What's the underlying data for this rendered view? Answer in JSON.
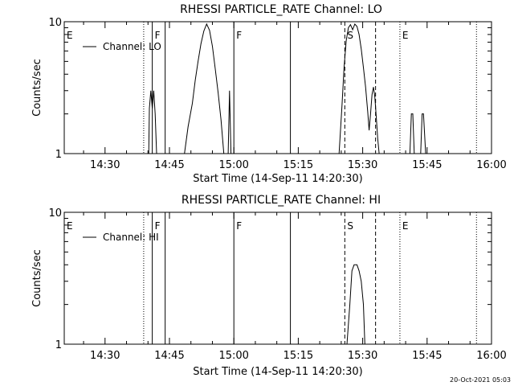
{
  "timestamp": "20-Oct-2021 05:03",
  "chart_data": [
    {
      "type": "line",
      "title": "RHESSI PARTICLE_RATE Channel: LO",
      "xlabel": "Start Time (14-Sep-11 14:20:30)",
      "ylabel": "Counts/sec",
      "y_scale": "log",
      "ylim": [
        1,
        10
      ],
      "xlim": [
        "14:20:30",
        "16:00:00"
      ],
      "x_ticks": [
        "14:30",
        "14:45",
        "15:00",
        "15:15",
        "15:30",
        "15:45",
        "16:00"
      ],
      "y_ticks": [
        "1",
        "10"
      ],
      "legend": {
        "label": "Channel: LO",
        "placement": "top-left"
      },
      "series": [
        {
          "name": "Channel: LO",
          "points": [
            [
              "14:40:10",
              1
            ],
            [
              "14:40:20",
              2.2
            ],
            [
              "14:40:40",
              3.0
            ],
            [
              "14:41:00",
              2.2
            ],
            [
              "14:41:20",
              3.0
            ],
            [
              "14:41:40",
              2.0
            ],
            [
              "14:42:00",
              1
            ],
            [
              "14:48:30",
              1
            ],
            [
              "14:49:20",
              1.6
            ],
            [
              "14:50:20",
              2.4
            ],
            [
              "14:51:00",
              3.6
            ],
            [
              "14:51:40",
              5.0
            ],
            [
              "14:52:20",
              6.8
            ],
            [
              "14:53:00",
              8.5
            ],
            [
              "14:53:40",
              9.6
            ],
            [
              "14:54:20",
              8.6
            ],
            [
              "14:55:00",
              6.5
            ],
            [
              "14:55:40",
              4.4
            ],
            [
              "14:56:20",
              2.9
            ],
            [
              "14:57:00",
              1.8
            ],
            [
              "14:57:40",
              1
            ],
            [
              "14:58:40",
              1
            ],
            [
              "14:59:00",
              3.0
            ],
            [
              "14:59:20",
              1
            ],
            [
              "15:24:30",
              1
            ],
            [
              "15:25:10",
              2.3
            ],
            [
              "15:25:40",
              4.5
            ],
            [
              "15:26:10",
              7.2
            ],
            [
              "15:26:40",
              9.0
            ],
            [
              "15:27:10",
              9.5
            ],
            [
              "15:27:40",
              8.7
            ],
            [
              "15:28:10",
              9.6
            ],
            [
              "15:28:40",
              9.2
            ],
            [
              "15:29:10",
              8.0
            ],
            [
              "15:29:40",
              6.2
            ],
            [
              "15:30:10",
              4.5
            ],
            [
              "15:30:40",
              3.2
            ],
            [
              "15:31:10",
              2.1
            ],
            [
              "15:31:30",
              1.5
            ],
            [
              "15:31:50",
              2.0
            ],
            [
              "15:32:10",
              2.8
            ],
            [
              "15:32:30",
              3.2
            ],
            [
              "15:32:50",
              2.7
            ],
            [
              "15:33:10",
              1.9
            ],
            [
              "15:33:30",
              1.3
            ],
            [
              "15:33:50",
              1
            ],
            [
              "15:41:00",
              1
            ],
            [
              "15:41:20",
              2.0
            ],
            [
              "15:41:40",
              2.0
            ],
            [
              "15:42:00",
              1
            ],
            [
              "15:43:30",
              1
            ],
            [
              "15:43:50",
              2.0
            ],
            [
              "15:44:10",
              2.0
            ],
            [
              "15:44:40",
              1
            ]
          ]
        }
      ],
      "event_markers": [
        {
          "label": "E",
          "time": "14:20:30",
          "style": "dotted"
        },
        {
          "label": "",
          "time": "14:39:00",
          "style": "dotted"
        },
        {
          "label": "F",
          "time": "14:41:00",
          "style": "solid"
        },
        {
          "label": "",
          "time": "14:44:00",
          "style": "solid"
        },
        {
          "label": "F",
          "time": "15:00:00",
          "style": "solid"
        },
        {
          "label": "",
          "time": "15:13:10",
          "style": "solid"
        },
        {
          "label": "S",
          "time": "15:25:50",
          "style": "dashed"
        },
        {
          "label": "",
          "time": "15:33:00",
          "style": "dashed"
        },
        {
          "label": "E",
          "time": "15:38:40",
          "style": "dotted"
        },
        {
          "label": "",
          "time": "15:56:30",
          "style": "dotted"
        }
      ]
    },
    {
      "type": "line",
      "title": "RHESSI PARTICLE_RATE Channel: HI",
      "xlabel": "Start Time (14-Sep-11 14:20:30)",
      "ylabel": "Counts/sec",
      "y_scale": "log",
      "ylim": [
        1,
        10
      ],
      "xlim": [
        "14:20:30",
        "16:00:00"
      ],
      "x_ticks": [
        "14:30",
        "14:45",
        "15:00",
        "15:15",
        "15:30",
        "15:45",
        "16:00"
      ],
      "y_ticks": [
        "1",
        "10"
      ],
      "legend": {
        "label": "Channel: HI",
        "placement": "top-left"
      },
      "series": [
        {
          "name": "Channel: HI",
          "points": [
            [
              "15:26:20",
              1
            ],
            [
              "15:27:00",
              2.0
            ],
            [
              "15:27:30",
              3.6
            ],
            [
              "15:28:00",
              4.0
            ],
            [
              "15:28:40",
              4.0
            ],
            [
              "15:29:10",
              3.6
            ],
            [
              "15:29:40",
              3.0
            ],
            [
              "15:30:10",
              2.0
            ],
            [
              "15:30:30",
              1
            ]
          ]
        }
      ],
      "event_markers": [
        {
          "label": "E",
          "time": "14:20:30",
          "style": "dotted"
        },
        {
          "label": "",
          "time": "14:39:00",
          "style": "dotted"
        },
        {
          "label": "F",
          "time": "14:41:00",
          "style": "solid"
        },
        {
          "label": "",
          "time": "14:44:00",
          "style": "solid"
        },
        {
          "label": "F",
          "time": "15:00:00",
          "style": "solid"
        },
        {
          "label": "",
          "time": "15:13:10",
          "style": "solid"
        },
        {
          "label": "S",
          "time": "15:25:50",
          "style": "dashed"
        },
        {
          "label": "",
          "time": "15:33:00",
          "style": "dashed"
        },
        {
          "label": "E",
          "time": "15:38:40",
          "style": "dotted"
        },
        {
          "label": "",
          "time": "15:56:30",
          "style": "dotted"
        }
      ]
    }
  ]
}
